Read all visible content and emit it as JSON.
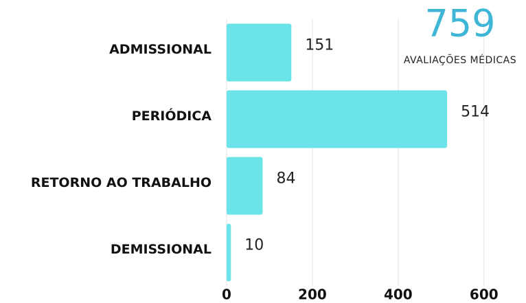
{
  "chart_data": {
    "type": "hbar",
    "kpi_value": 759,
    "kpi_label": "AVALIAÇÕES MÉDICAS",
    "categories": [
      "ADMISSIONAL",
      "PERIÓDICA",
      "RETORNO AO TRABALHO",
      "DEMISSIONAL"
    ],
    "values": [
      151,
      514,
      84,
      10
    ],
    "color": "#6ae4e9",
    "xlim": [
      0,
      690
    ],
    "xticks": [
      0,
      200,
      400,
      600
    ],
    "grid": true
  }
}
